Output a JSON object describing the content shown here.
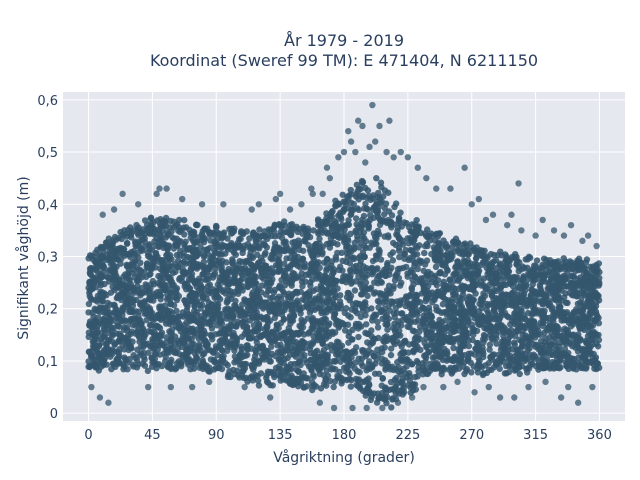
{
  "chart_data": {
    "type": "scatter",
    "title": "År 1979 - 2019",
    "subtitle": "Koordinat (Sweref 99 TM): E 471404, N 6211150",
    "xlabel": "Vågriktning (grader)",
    "ylabel": "Signifikant våghöjd (m)",
    "xlim": [
      -18,
      378
    ],
    "ylim": [
      -0.015,
      0.615
    ],
    "x_ticks": [
      0,
      45,
      90,
      135,
      180,
      225,
      270,
      315,
      360
    ],
    "x_tick_labels": [
      "0",
      "45",
      "90",
      "135",
      "180",
      "225",
      "270",
      "315",
      "360"
    ],
    "y_ticks": [
      0,
      0.1,
      0.2,
      0.3,
      0.4,
      0.5,
      0.6
    ],
    "y_tick_labels": [
      "0",
      "0,1",
      "0,2",
      "0,3",
      "0,4",
      "0,5",
      "0,6"
    ],
    "grid": true,
    "marker_color": "#34566d",
    "plot_bg": "#e5e8ef",
    "envelope": {
      "x": [
        0,
        10,
        20,
        30,
        45,
        60,
        75,
        90,
        105,
        120,
        135,
        150,
        165,
        175,
        185,
        195,
        205,
        215,
        225,
        240,
        255,
        270,
        285,
        300,
        315,
        330,
        345,
        360
      ],
      "ymin": [
        0.08,
        0.08,
        0.08,
        0.08,
        0.08,
        0.08,
        0.08,
        0.07,
        0.06,
        0.05,
        0.05,
        0.04,
        0.04,
        0.05,
        0.04,
        0.02,
        0.01,
        0.01,
        0.03,
        0.07,
        0.07,
        0.07,
        0.07,
        0.07,
        0.08,
        0.08,
        0.08,
        0.08
      ],
      "ymax": [
        0.31,
        0.33,
        0.35,
        0.36,
        0.38,
        0.38,
        0.37,
        0.36,
        0.36,
        0.36,
        0.37,
        0.37,
        0.38,
        0.42,
        0.44,
        0.46,
        0.46,
        0.42,
        0.38,
        0.36,
        0.34,
        0.33,
        0.31,
        0.31,
        0.3,
        0.3,
        0.3,
        0.29
      ]
    },
    "outliers": [
      {
        "x": 2,
        "y": 0.05
      },
      {
        "x": 8,
        "y": 0.03
      },
      {
        "x": 10,
        "y": 0.38
      },
      {
        "x": 14,
        "y": 0.02
      },
      {
        "x": 18,
        "y": 0.39
      },
      {
        "x": 24,
        "y": 0.42
      },
      {
        "x": 35,
        "y": 0.4
      },
      {
        "x": 42,
        "y": 0.05
      },
      {
        "x": 48,
        "y": 0.42
      },
      {
        "x": 50,
        "y": 0.43
      },
      {
        "x": 55,
        "y": 0.43
      },
      {
        "x": 58,
        "y": 0.05
      },
      {
        "x": 66,
        "y": 0.41
      },
      {
        "x": 73,
        "y": 0.05
      },
      {
        "x": 80,
        "y": 0.4
      },
      {
        "x": 85,
        "y": 0.06
      },
      {
        "x": 95,
        "y": 0.4
      },
      {
        "x": 110,
        "y": 0.05
      },
      {
        "x": 115,
        "y": 0.39
      },
      {
        "x": 120,
        "y": 0.4
      },
      {
        "x": 128,
        "y": 0.03
      },
      {
        "x": 132,
        "y": 0.41
      },
      {
        "x": 135,
        "y": 0.42
      },
      {
        "x": 142,
        "y": 0.39
      },
      {
        "x": 150,
        "y": 0.4
      },
      {
        "x": 157,
        "y": 0.43
      },
      {
        "x": 158,
        "y": 0.42
      },
      {
        "x": 163,
        "y": 0.02
      },
      {
        "x": 165,
        "y": 0.42
      },
      {
        "x": 168,
        "y": 0.47
      },
      {
        "x": 170,
        "y": 0.45
      },
      {
        "x": 173,
        "y": 0.01
      },
      {
        "x": 176,
        "y": 0.49
      },
      {
        "x": 180,
        "y": 0.5
      },
      {
        "x": 183,
        "y": 0.54
      },
      {
        "x": 185,
        "y": 0.52
      },
      {
        "x": 186,
        "y": 0.01
      },
      {
        "x": 188,
        "y": 0.5
      },
      {
        "x": 190,
        "y": 0.56
      },
      {
        "x": 193,
        "y": 0.55
      },
      {
        "x": 195,
        "y": 0.48
      },
      {
        "x": 196,
        "y": 0.01
      },
      {
        "x": 198,
        "y": 0.51
      },
      {
        "x": 200,
        "y": 0.59
      },
      {
        "x": 202,
        "y": 0.52
      },
      {
        "x": 205,
        "y": 0.55
      },
      {
        "x": 207,
        "y": 0.01
      },
      {
        "x": 210,
        "y": 0.5
      },
      {
        "x": 212,
        "y": 0.56
      },
      {
        "x": 215,
        "y": 0.49
      },
      {
        "x": 218,
        "y": 0.02
      },
      {
        "x": 220,
        "y": 0.5
      },
      {
        "x": 225,
        "y": 0.49
      },
      {
        "x": 228,
        "y": 0.03
      },
      {
        "x": 232,
        "y": 0.47
      },
      {
        "x": 236,
        "y": 0.05
      },
      {
        "x": 238,
        "y": 0.45
      },
      {
        "x": 245,
        "y": 0.43
      },
      {
        "x": 250,
        "y": 0.05
      },
      {
        "x": 255,
        "y": 0.43
      },
      {
        "x": 260,
        "y": 0.06
      },
      {
        "x": 265,
        "y": 0.47
      },
      {
        "x": 270,
        "y": 0.4
      },
      {
        "x": 272,
        "y": 0.04
      },
      {
        "x": 275,
        "y": 0.41
      },
      {
        "x": 280,
        "y": 0.37
      },
      {
        "x": 282,
        "y": 0.05
      },
      {
        "x": 285,
        "y": 0.38
      },
      {
        "x": 290,
        "y": 0.03
      },
      {
        "x": 295,
        "y": 0.36
      },
      {
        "x": 298,
        "y": 0.38
      },
      {
        "x": 300,
        "y": 0.03
      },
      {
        "x": 303,
        "y": 0.44
      },
      {
        "x": 305,
        "y": 0.35
      },
      {
        "x": 310,
        "y": 0.05
      },
      {
        "x": 315,
        "y": 0.34
      },
      {
        "x": 320,
        "y": 0.37
      },
      {
        "x": 322,
        "y": 0.06
      },
      {
        "x": 328,
        "y": 0.35
      },
      {
        "x": 333,
        "y": 0.03
      },
      {
        "x": 335,
        "y": 0.34
      },
      {
        "x": 338,
        "y": 0.05
      },
      {
        "x": 340,
        "y": 0.36
      },
      {
        "x": 345,
        "y": 0.02
      },
      {
        "x": 348,
        "y": 0.33
      },
      {
        "x": 352,
        "y": 0.34
      },
      {
        "x": 355,
        "y": 0.05
      },
      {
        "x": 358,
        "y": 0.32
      }
    ]
  }
}
